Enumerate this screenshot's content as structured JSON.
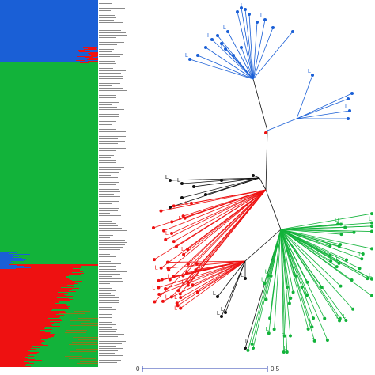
{
  "colors": {
    "blue": "#1a5fd6",
    "green": "#12b33a",
    "red": "#ee1111",
    "olive": "#8a7a1a",
    "black": "#111111",
    "label_gray": "#8a8a8a"
  },
  "structure": {
    "groups": [
      {
        "color": "blue",
        "fraction": 0.17
      },
      {
        "color": "green",
        "fraction": 0.55
      },
      {
        "color": "red",
        "fraction": 0.28
      }
    ]
  },
  "tree": {
    "leaf_tag_text": "L",
    "leaf_tag_alt": "I",
    "clusters": [
      "blue",
      "red",
      "black",
      "green"
    ]
  },
  "scale_bar": {
    "start_label": "0",
    "end_label": "0.5"
  }
}
